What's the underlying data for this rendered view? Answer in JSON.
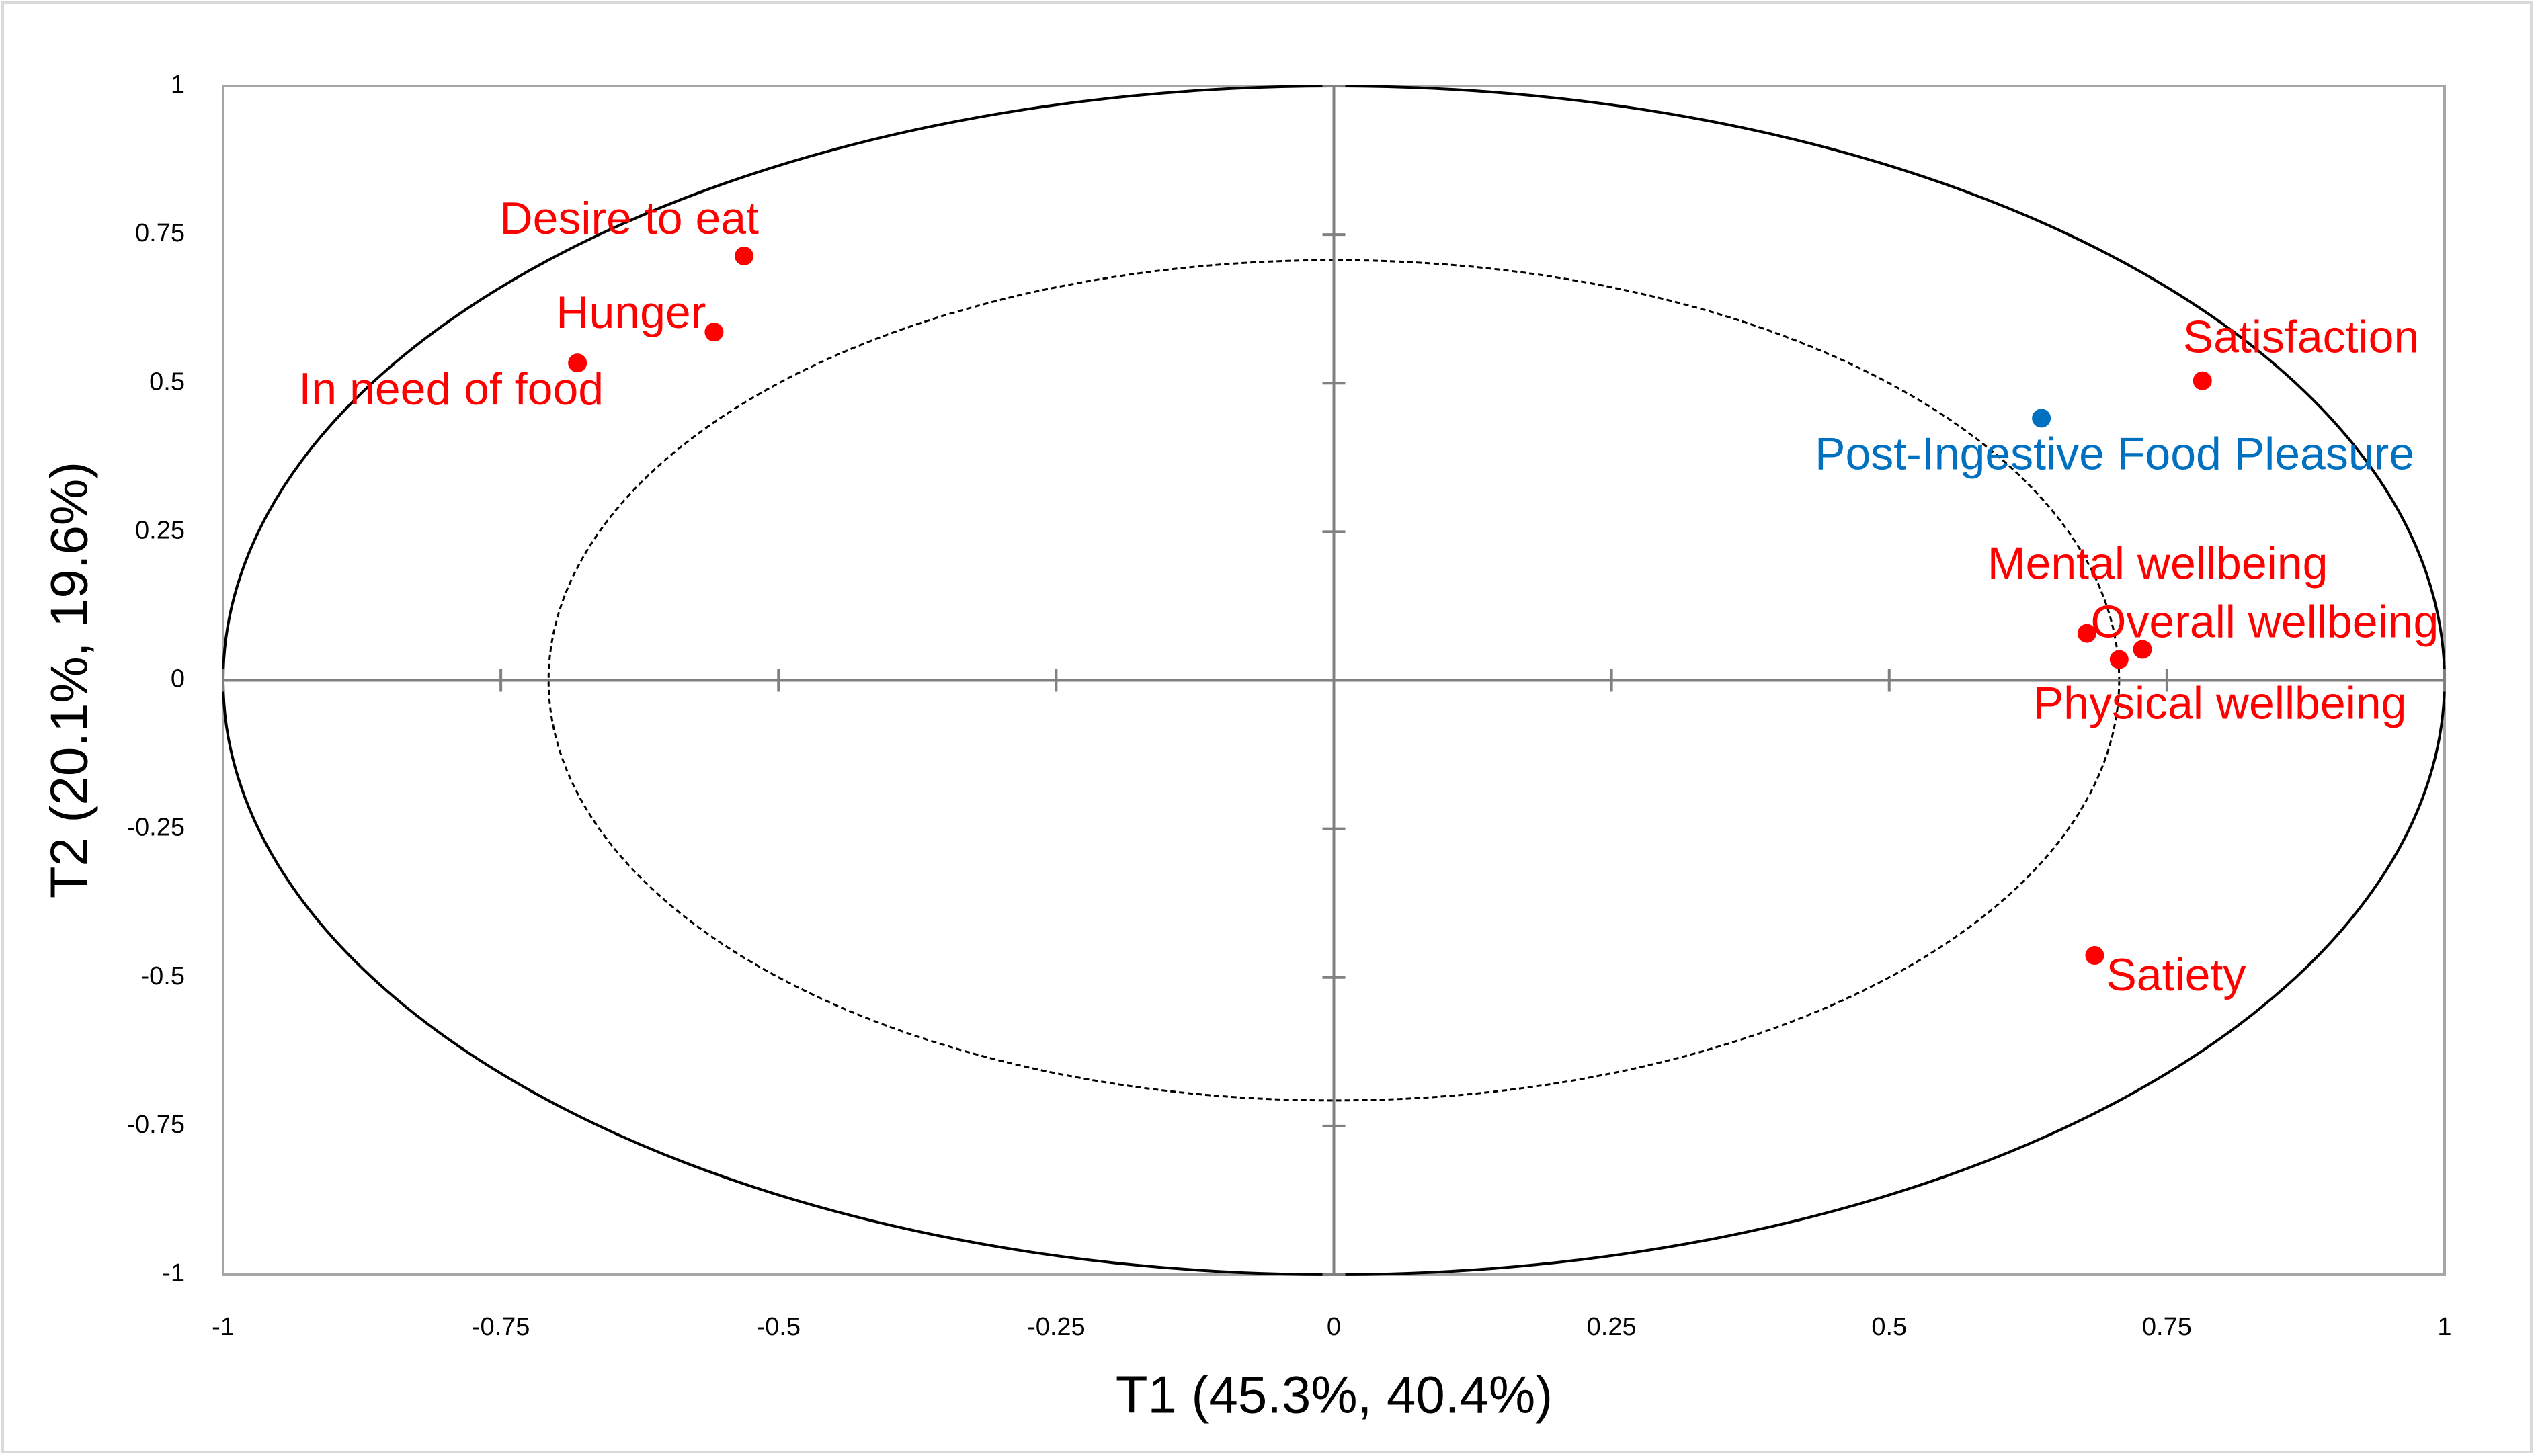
{
  "chart_data": {
    "type": "scatter",
    "x_label": "T1 (45.3%, 40.4%)",
    "y_label": "T2 (20.1%, 19.6%)",
    "xlim": [
      -1,
      1
    ],
    "ylim": [
      -1,
      1
    ],
    "xticks": [
      -1,
      -0.75,
      -0.5,
      -0.25,
      0,
      0.25,
      0.5,
      0.75,
      1
    ],
    "yticks": [
      -1,
      -0.75,
      -0.5,
      -0.25,
      0,
      0.25,
      0.5,
      0.75,
      1
    ],
    "circle_radii": [
      1,
      0.707
    ],
    "points": [
      {
        "label": "Desire to eat",
        "x": -0.531,
        "y": 0.714,
        "color": "#ff0000"
      },
      {
        "label": "Hunger",
        "x": -0.558,
        "y": 0.586,
        "color": "#ff0000"
      },
      {
        "label": "In need of food",
        "x": -0.681,
        "y": 0.534,
        "color": "#ff0000"
      },
      {
        "label": "Satisfaction",
        "x": 0.782,
        "y": 0.504,
        "color": "#ff0000"
      },
      {
        "label": "Post-Ingestive Food Pleasure",
        "x": 0.637,
        "y": 0.441,
        "color": "#0070c0"
      },
      {
        "label": "Mental wellbeing",
        "x": 0.678,
        "y": 0.079,
        "color": "#ff0000"
      },
      {
        "label": "Overall wellbeing",
        "x": 0.728,
        "y": 0.052,
        "color": "#ff0000"
      },
      {
        "label": "Physical wellbeing",
        "x": 0.707,
        "y": 0.035,
        "color": "#ff0000"
      },
      {
        "label": "Satiety",
        "x": 0.685,
        "y": -0.463,
        "color": "#ff0000"
      }
    ]
  }
}
